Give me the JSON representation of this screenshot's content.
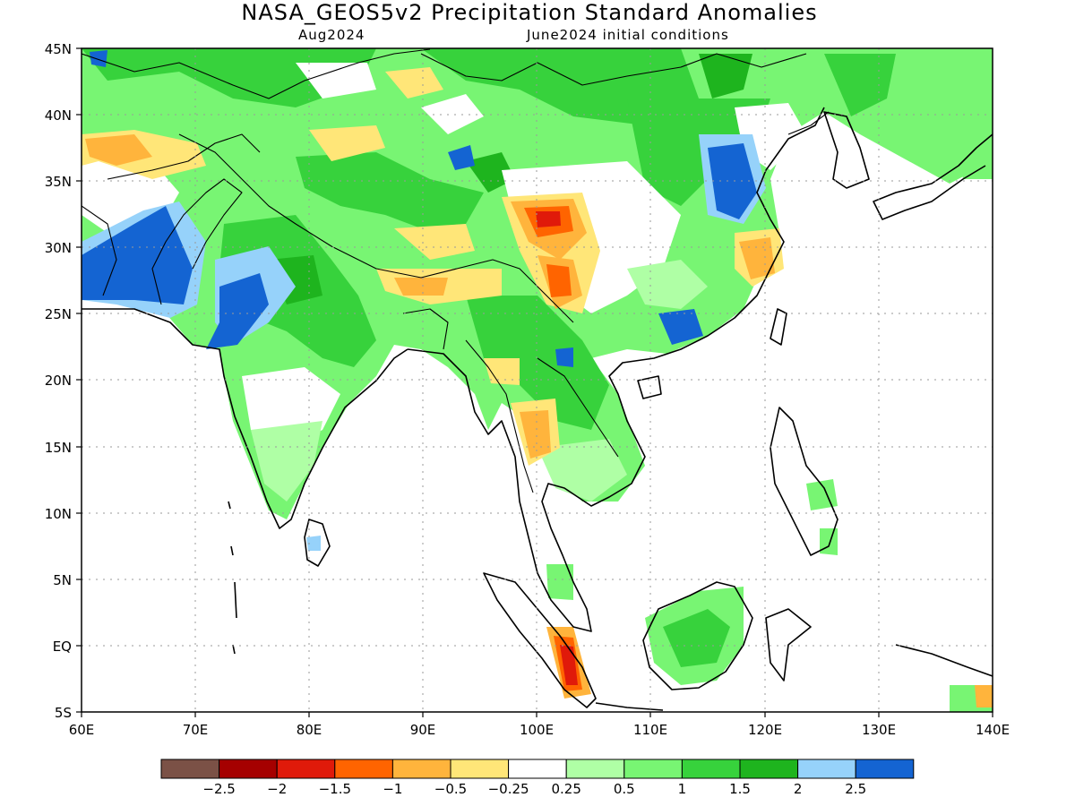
{
  "title": "NASA_GEOS5v2 Precipitation Standard Anomalies",
  "subtitle_left": "Aug2024",
  "subtitle_right": "June2024 initial conditions",
  "map": {
    "lon_range": [
      60,
      140
    ],
    "lat_range": [
      -5,
      45
    ],
    "lat_labels": [
      "45N",
      "40N",
      "35N",
      "30N",
      "25N",
      "20N",
      "15N",
      "10N",
      "5N",
      "EQ",
      "5S"
    ],
    "lon_labels": [
      "60E",
      "70E",
      "80E",
      "90E",
      "100E",
      "110E",
      "120E",
      "130E",
      "140E"
    ],
    "grid": "dotted, every 10 degrees"
  },
  "colorbar": {
    "colors": [
      "#7b5146",
      "#a50000",
      "#e01a0a",
      "#ff6400",
      "#ffb43c",
      "#ffe678",
      "#ffffff",
      "#afffa5",
      "#78f573",
      "#37d23c",
      "#1eb41e",
      "#96d2fa",
      "#1464d2"
    ],
    "labels": [
      "−2.5",
      "−2",
      "−1.5",
      "−1",
      "−0.5",
      "−0.25",
      "0.25",
      "0.5",
      "1",
      "1.5",
      "2",
      "2.5"
    ]
  }
}
